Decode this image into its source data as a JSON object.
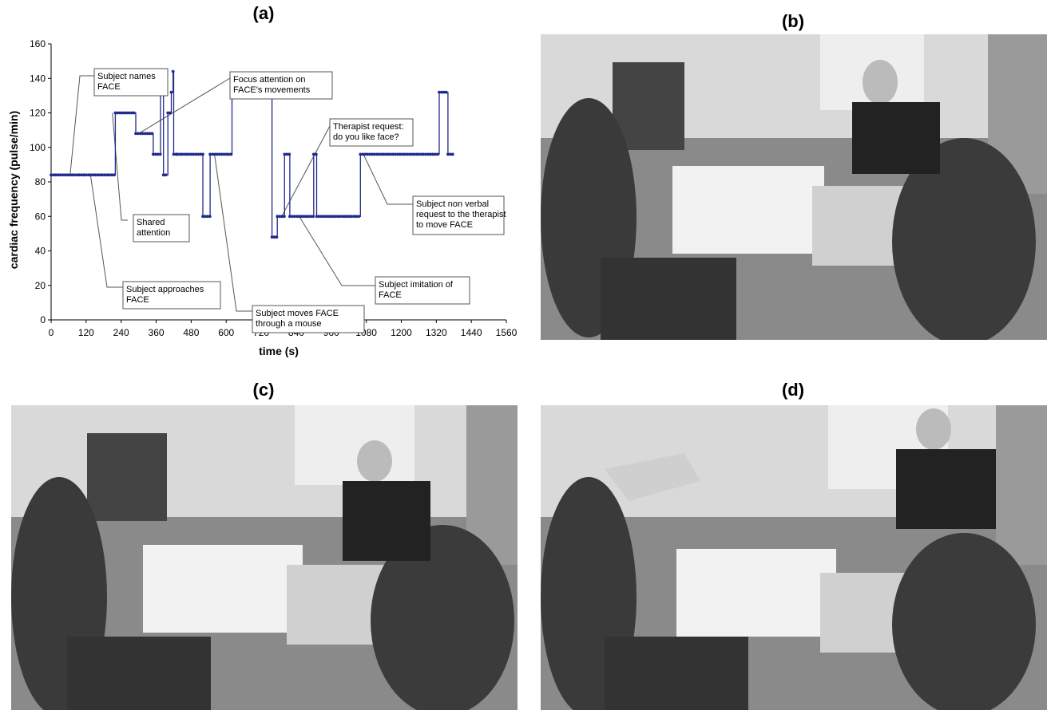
{
  "panels": {
    "a": "(a)",
    "b": "(b)",
    "c": "(c)",
    "d": "(d)"
  },
  "chart_data": {
    "type": "line",
    "xlabel": "time (s)",
    "ylabel": "cardiac frequency (pulse/min)",
    "xlim": [
      0,
      1560
    ],
    "ylim": [
      0,
      160
    ],
    "xticks": [
      0,
      120,
      240,
      360,
      480,
      600,
      720,
      840,
      960,
      1080,
      1200,
      1320,
      1440,
      1560
    ],
    "yticks": [
      0,
      20,
      40,
      60,
      80,
      100,
      120,
      140,
      160
    ],
    "series_color": "#1f2a8c",
    "series": [
      {
        "x": [
          0,
          220,
          220,
          290,
          290,
          350,
          350,
          375,
          375,
          385,
          385,
          400,
          400,
          412,
          412,
          418,
          418,
          420,
          420,
          432,
          432,
          520,
          520,
          545,
          545,
          620,
          620,
          757,
          757,
          775,
          775,
          800,
          800,
          818,
          818,
          900,
          900,
          910,
          910,
          1060,
          1060,
          1330,
          1330,
          1360,
          1360,
          1380
        ],
        "y": [
          84,
          84,
          120,
          120,
          108,
          108,
          96,
          96,
          132,
          132,
          84,
          84,
          120,
          120,
          132,
          132,
          144,
          144,
          96,
          96,
          96,
          96,
          60,
          60,
          96,
          96,
          132,
          132,
          48,
          48,
          60,
          60,
          96,
          96,
          60,
          60,
          96,
          96,
          60,
          60,
          96,
          96,
          132,
          132,
          96,
          96
        ]
      }
    ],
    "annotations": [
      {
        "lines": [
          "Subject names",
          "FACE"
        ],
        "x": 65,
        "y": 84
      },
      {
        "lines": [
          "Focus attention on",
          "FACE's movements"
        ],
        "x": 300,
        "y": 108
      },
      {
        "lines": [
          "Therapist request:",
          "do you like face?"
        ],
        "x": 790,
        "y": 60
      },
      {
        "lines": [
          "Shared",
          "attention"
        ],
        "x": 210,
        "y": 120
      },
      {
        "lines": [
          "Subject non verbal",
          "request to the therapist",
          "to move FACE"
        ],
        "x": 1070,
        "y": 96
      },
      {
        "lines": [
          "Subject imitation of",
          "FACE"
        ],
        "x": 850,
        "y": 60
      },
      {
        "lines": [
          "Subject approaches",
          "FACE"
        ],
        "x": 135,
        "y": 84
      },
      {
        "lines": [
          "Subject moves FACE",
          "through a mouse"
        ],
        "x": 560,
        "y": 96
      }
    ]
  },
  "photos": {
    "b": "therapy-room-photo",
    "c": "therapy-room-photo",
    "d": "therapy-room-photo"
  }
}
